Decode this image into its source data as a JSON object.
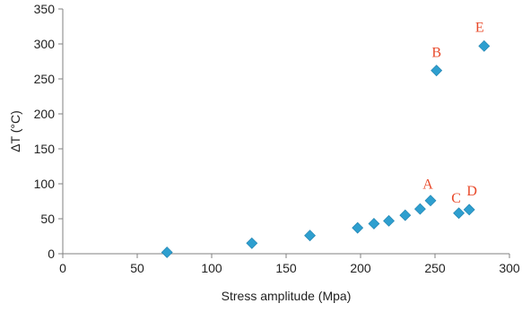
{
  "chart_data": {
    "type": "scatter",
    "title": "",
    "xlabel": "Stress amplitude (Mpa)",
    "ylabel": "ΔT (°C)",
    "xlim": [
      0,
      300
    ],
    "ylim": [
      0,
      350
    ],
    "x_ticks": [
      0,
      50,
      100,
      150,
      200,
      250,
      300
    ],
    "y_ticks": [
      0,
      50,
      100,
      150,
      200,
      250,
      300,
      350
    ],
    "grid": false,
    "marker": "diamond",
    "colors": {
      "marker": "#2e9fcf",
      "annotation": "#e8492a",
      "axis": "#808080"
    },
    "series": [
      {
        "points": [
          {
            "x": 70,
            "y": 2
          },
          {
            "x": 127,
            "y": 15
          },
          {
            "x": 166,
            "y": 26
          },
          {
            "x": 198,
            "y": 37
          },
          {
            "x": 209,
            "y": 43
          },
          {
            "x": 219,
            "y": 47
          },
          {
            "x": 230,
            "y": 55
          },
          {
            "x": 240,
            "y": 64
          },
          {
            "x": 247,
            "y": 76
          },
          {
            "x": 251,
            "y": 262
          },
          {
            "x": 266,
            "y": 58
          },
          {
            "x": 273,
            "y": 63
          },
          {
            "x": 283,
            "y": 297
          }
        ]
      }
    ],
    "annotations": [
      {
        "text": "A",
        "x": 247,
        "y": 76
      },
      {
        "text": "B",
        "x": 251,
        "y": 262
      },
      {
        "text": "C",
        "x": 266,
        "y": 58
      },
      {
        "text": "D",
        "x": 273,
        "y": 63
      },
      {
        "text": "E",
        "x": 283,
        "y": 297
      }
    ]
  }
}
